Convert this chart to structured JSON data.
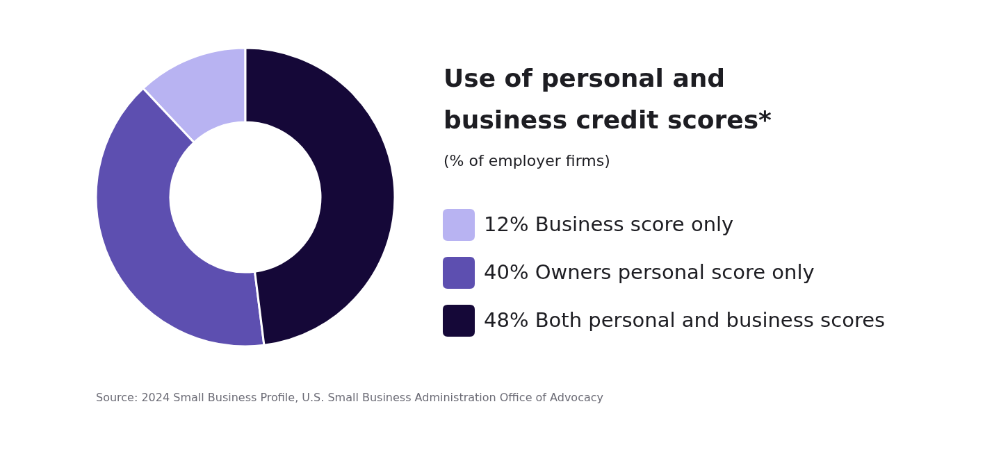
{
  "chart_data": {
    "type": "donut",
    "title": "Use of personal and business credit scores*",
    "subtitle": "(% of employer firms)",
    "categories": [
      "Business score only",
      "Owners personal score only",
      "Both personal and business scores"
    ],
    "values": [
      12,
      40,
      48
    ],
    "value_labels": [
      "12%",
      "40%",
      "48%"
    ],
    "colors": [
      "#b8b3f2",
      "#5d4fb0",
      "#150838"
    ],
    "legend": "right",
    "annotations": [
      "Source: 2024 Small Business Profile, U.S. Small Business Administration Office of Advocacy"
    ]
  }
}
